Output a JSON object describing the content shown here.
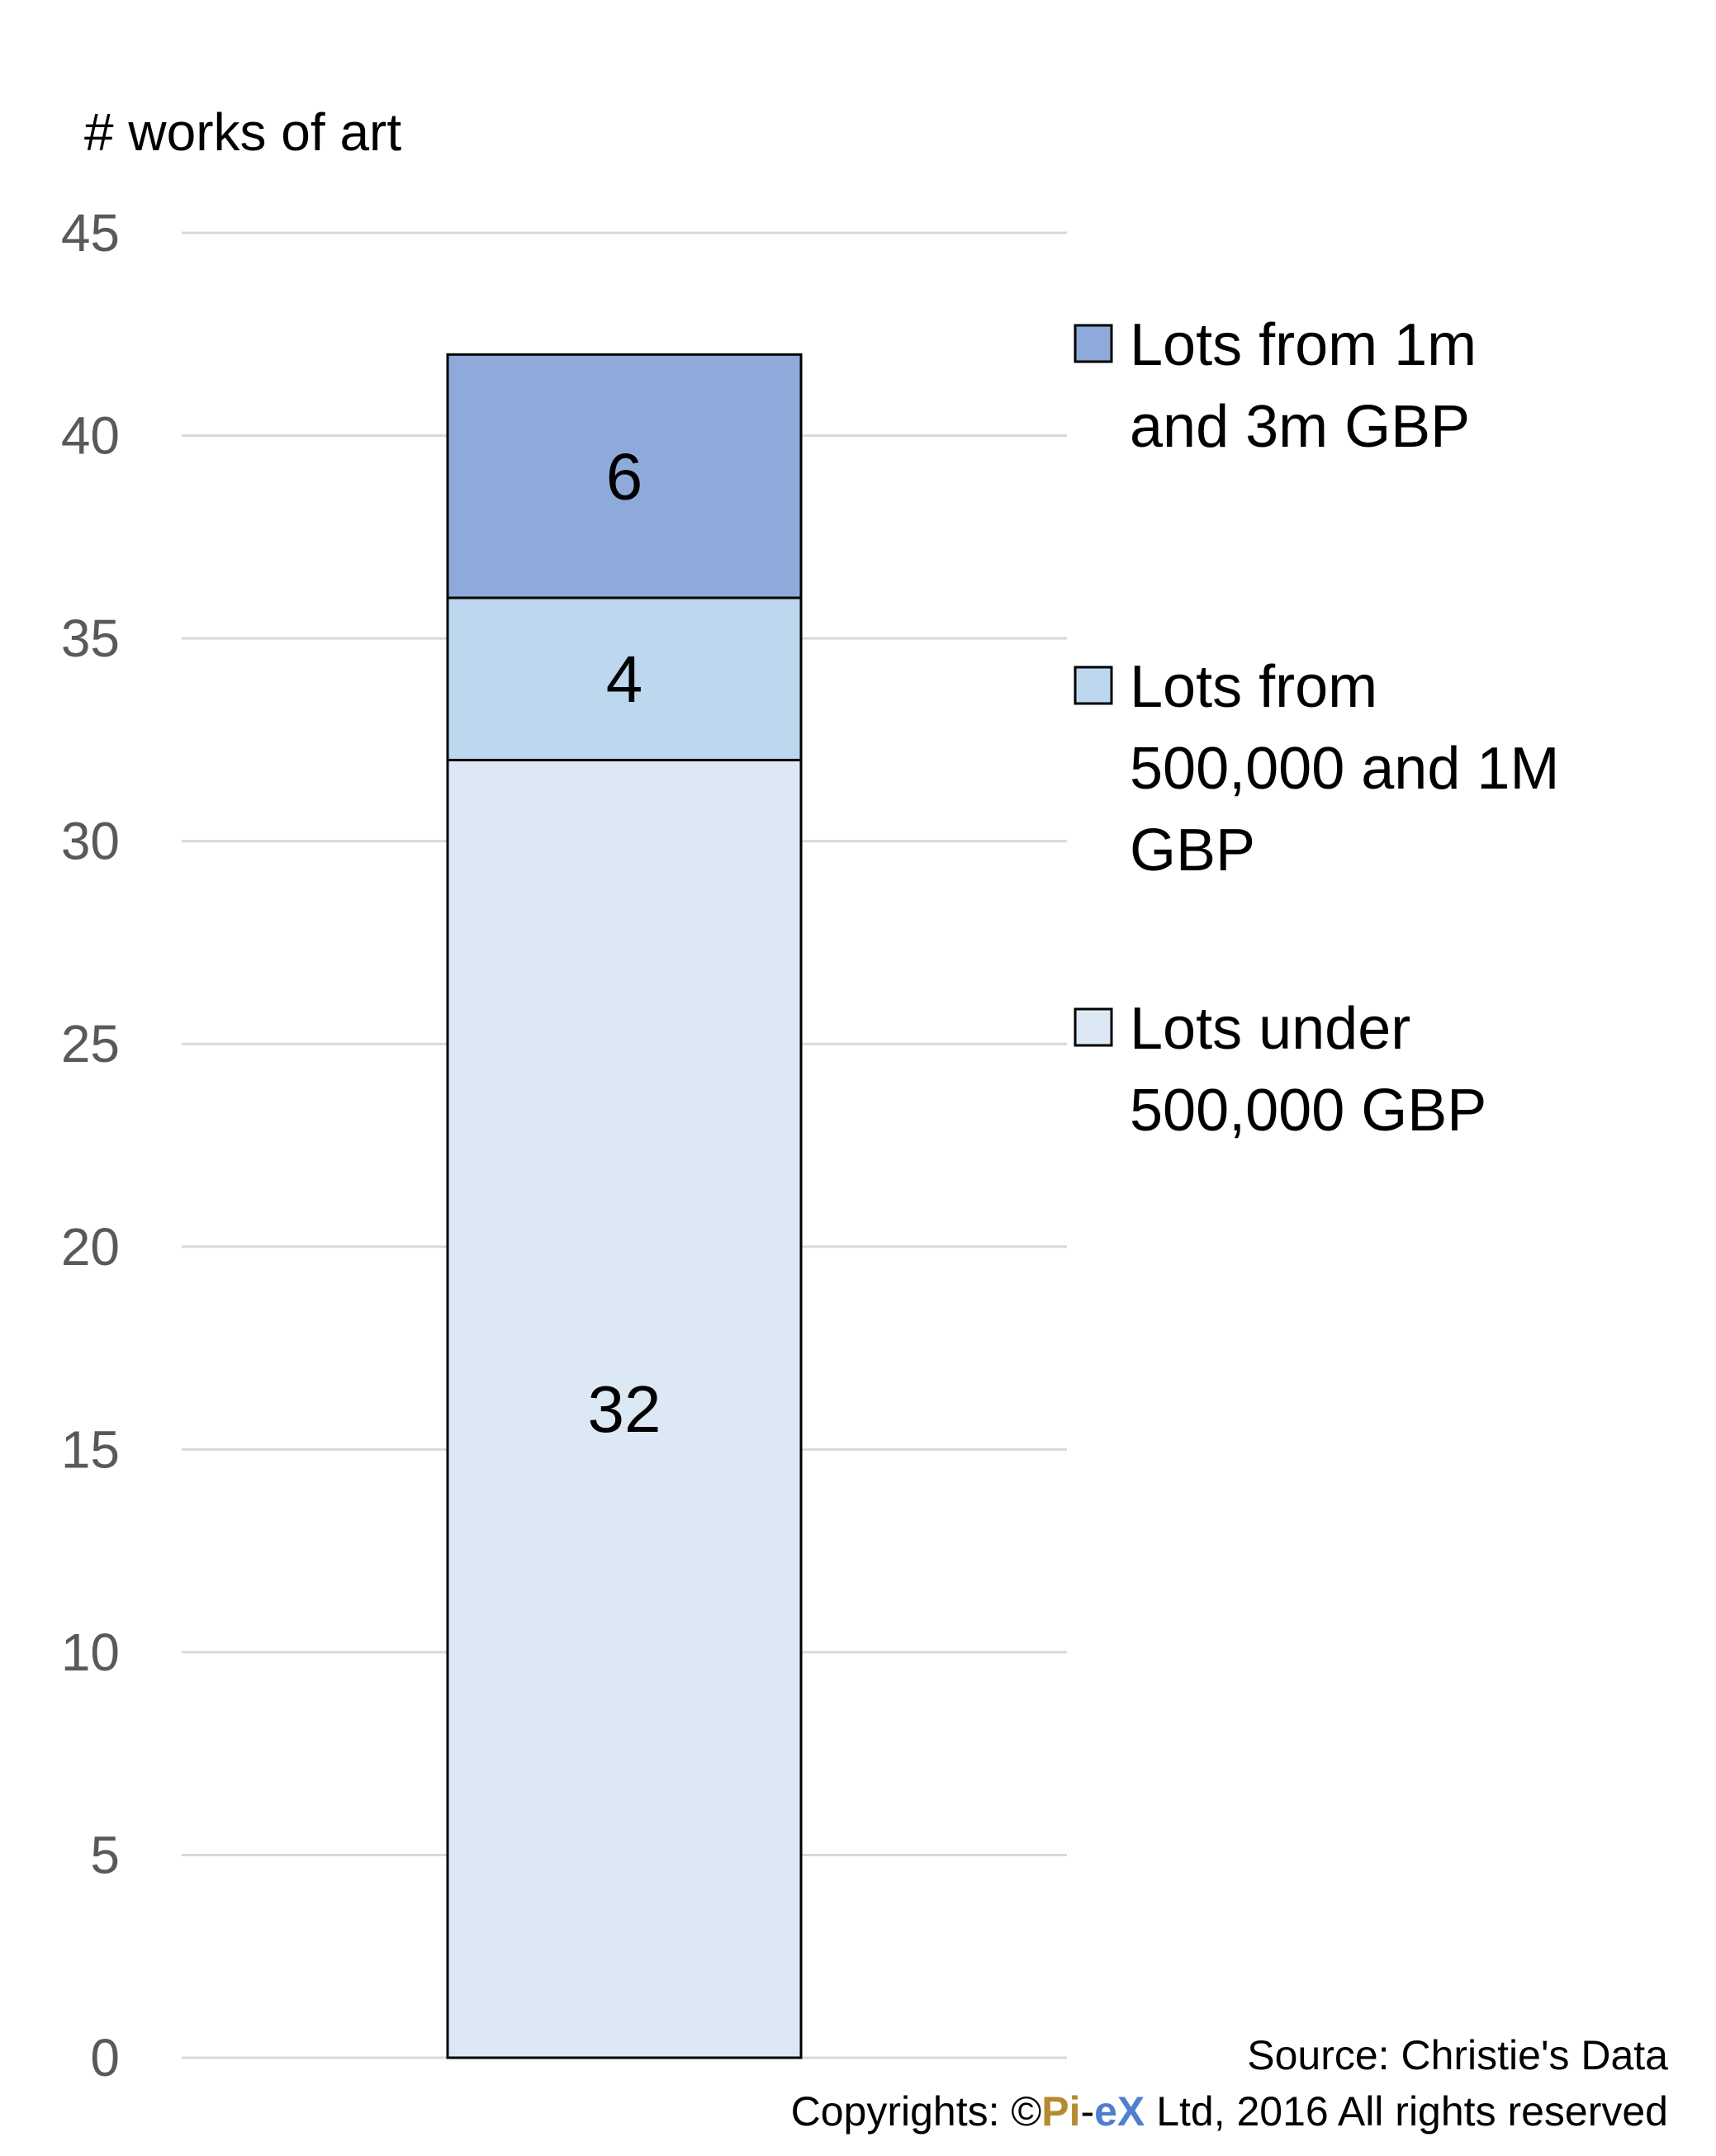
{
  "chart_data": {
    "type": "bar",
    "stacked": true,
    "categories": [
      ""
    ],
    "ylabel": "# works of art",
    "ylim": [
      0,
      45
    ],
    "yticks": [
      0,
      5,
      10,
      15,
      20,
      25,
      30,
      35,
      40,
      45
    ],
    "grid": true,
    "legend_position": "right",
    "series": [
      {
        "name": "Lots under 500,000 GBP",
        "legend_lines": [
          "Lots under",
          "500,000 GBP"
        ],
        "values": [
          32
        ],
        "color": "#dde8f5"
      },
      {
        "name": "Lots from 500,000 and 1M GBP",
        "legend_lines": [
          "Lots from",
          "500,000 and 1M",
          "GBP"
        ],
        "values": [
          4
        ],
        "color": "#bdd7ee"
      },
      {
        "name": "Lots from 1m and 3m GBP",
        "legend_lines": [
          "Lots from 1m",
          "and 3m  GBP"
        ],
        "values": [
          6
        ],
        "color": "#8eaadb"
      }
    ]
  },
  "footer": {
    "source": "Source: Christie's Data",
    "copyright_prefix": "Copyrights: ©",
    "brand_pi": "Pi",
    "brand_dash": "-",
    "brand_ex": "eX",
    "copyright_suffix": " Ltd, 2016 All rights reserved"
  }
}
